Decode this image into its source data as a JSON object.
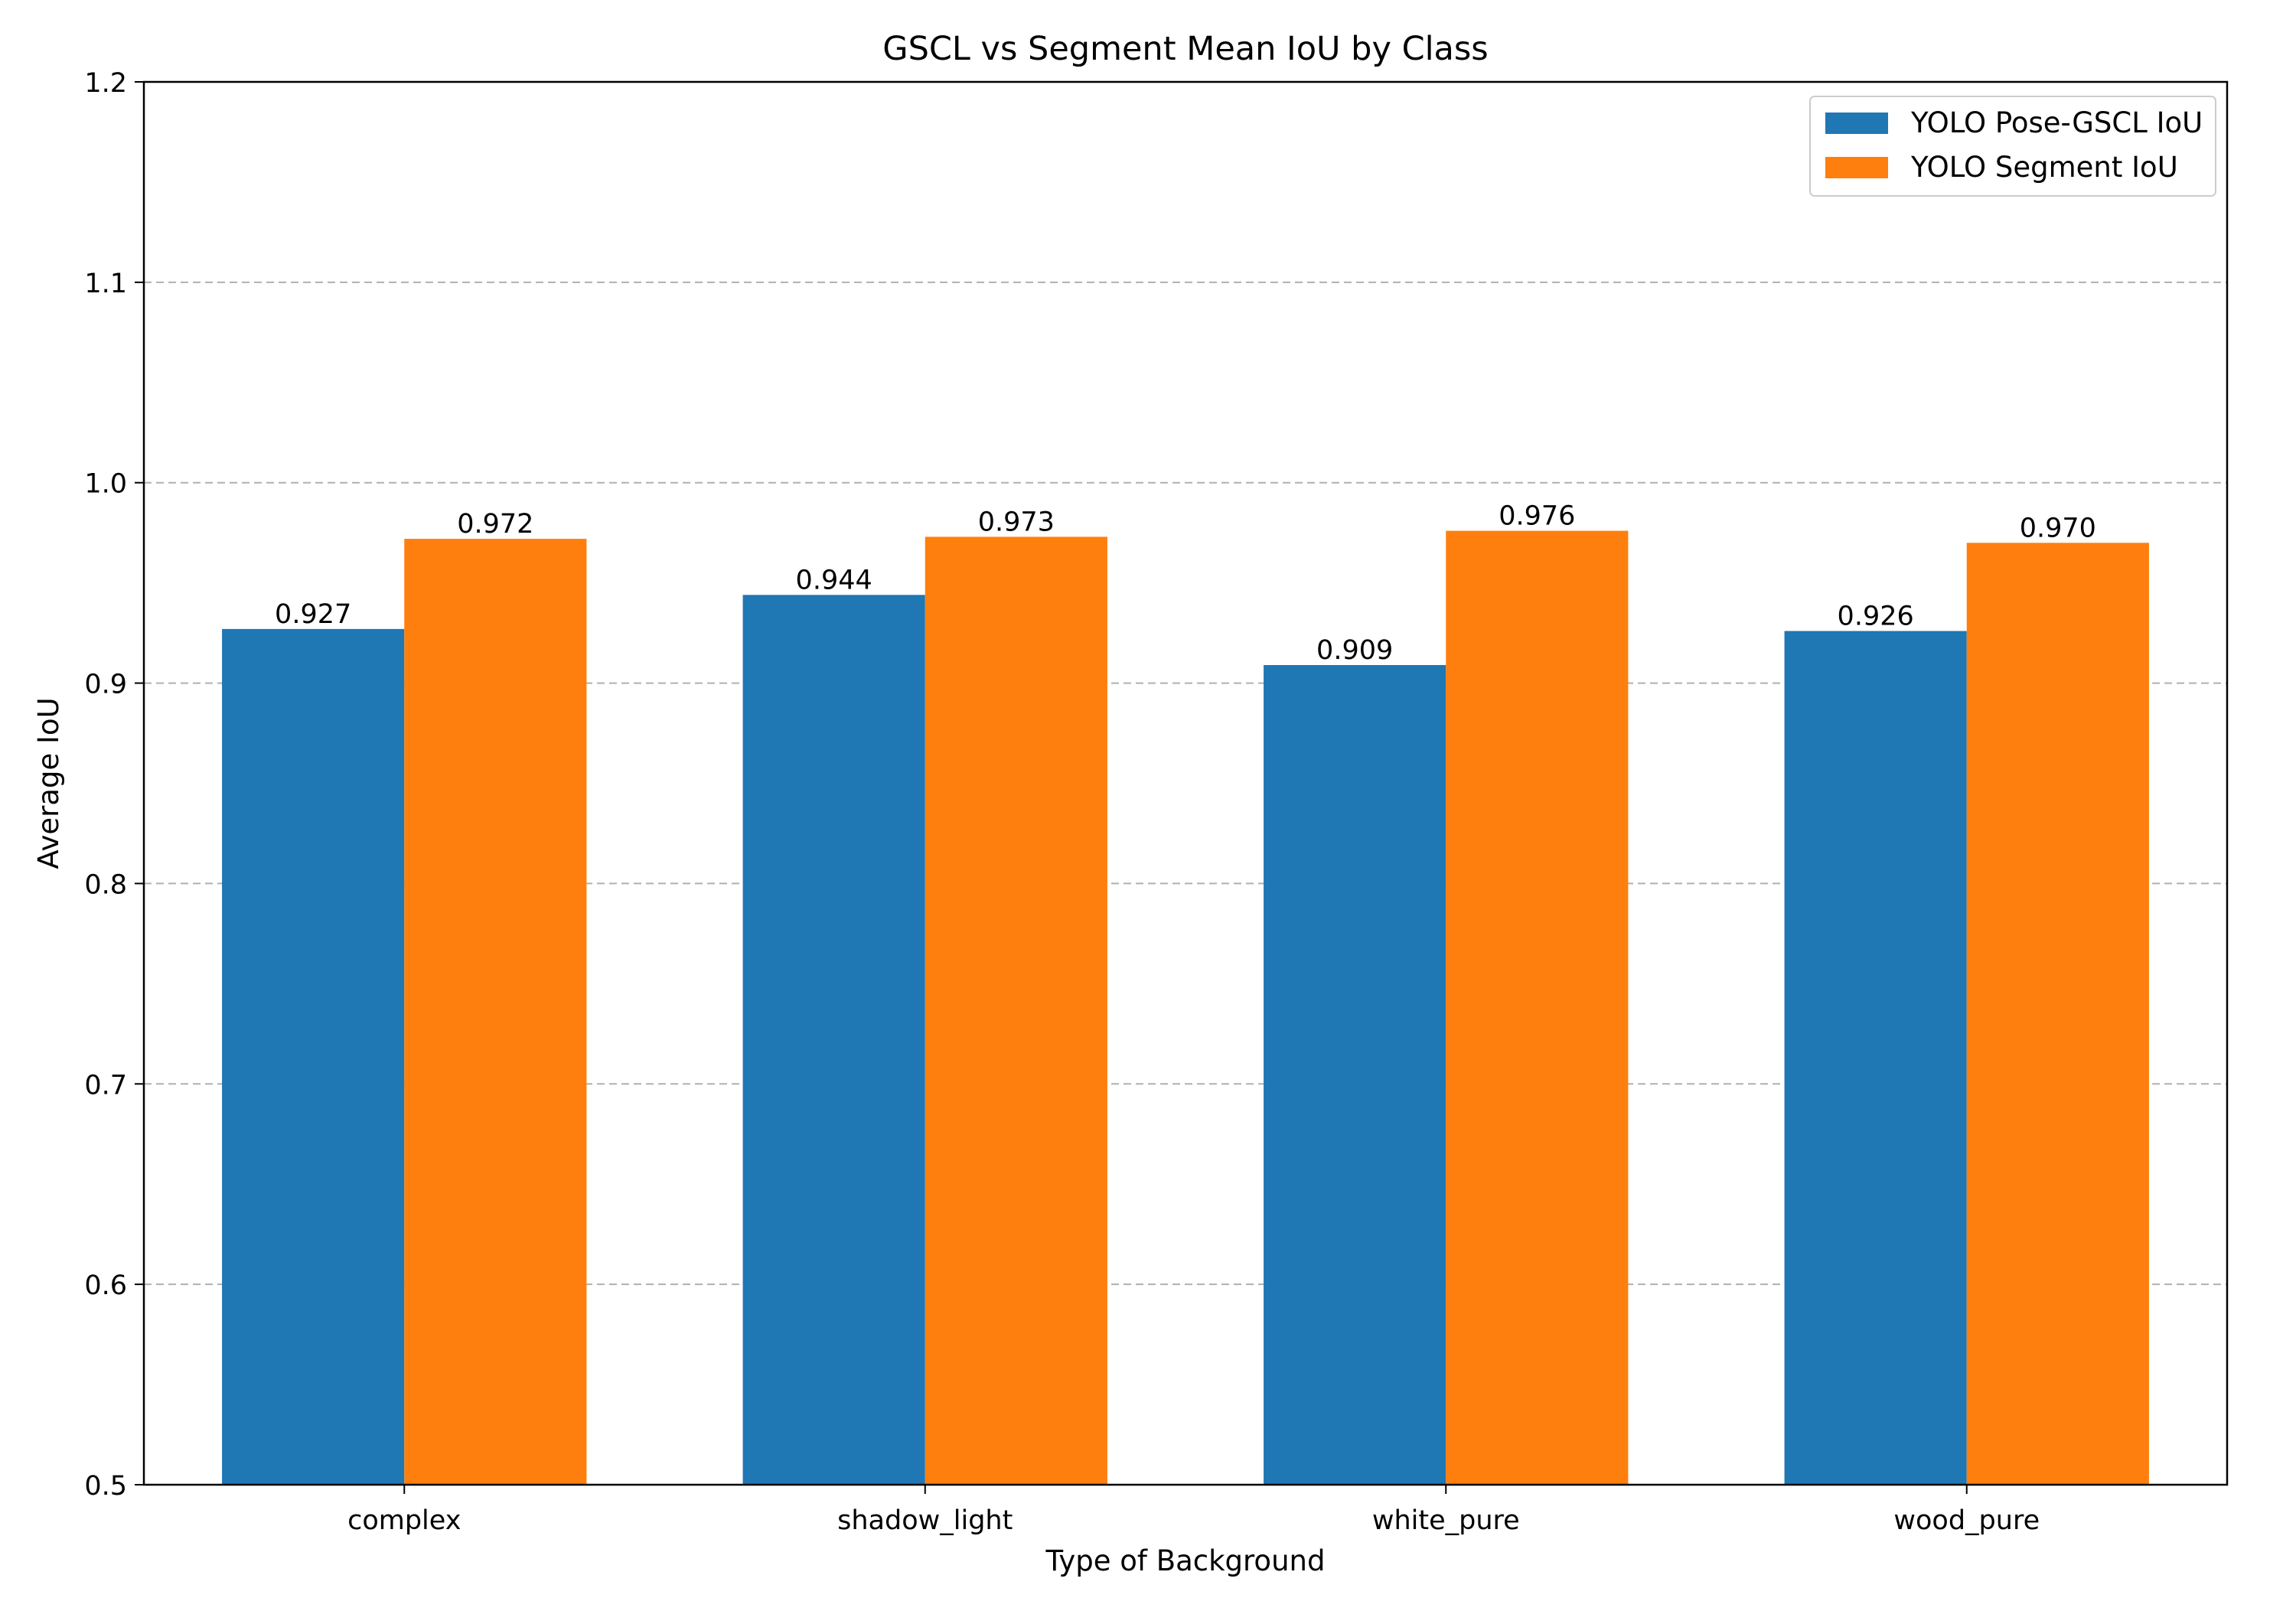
{
  "chart_data": {
    "type": "bar",
    "title": "GSCL vs Segment Mean IoU by Class",
    "xlabel": "Type of Background",
    "ylabel": "Average IoU",
    "ylim": [
      0.5,
      1.2
    ],
    "yticks": [
      "0.5",
      "0.6",
      "0.7",
      "0.8",
      "0.9",
      "1.0",
      "1.1",
      "1.2"
    ],
    "grid": "y-dashed",
    "legend_position": "top-right",
    "categories": [
      "complex",
      "shadow_light",
      "white_pure",
      "wood_pure"
    ],
    "series": [
      {
        "name": "YOLO Pose-GSCL IoU",
        "color": "#1f77b4",
        "values": [
          0.927,
          0.944,
          0.909,
          0.926
        ],
        "labels": [
          "0.927",
          "0.944",
          "0.909",
          "0.926"
        ]
      },
      {
        "name": "YOLO Segment IoU",
        "color": "#ff7f0e",
        "values": [
          0.972,
          0.973,
          0.976,
          0.97
        ],
        "labels": [
          "0.972",
          "0.973",
          "0.976",
          "0.970"
        ]
      }
    ]
  }
}
